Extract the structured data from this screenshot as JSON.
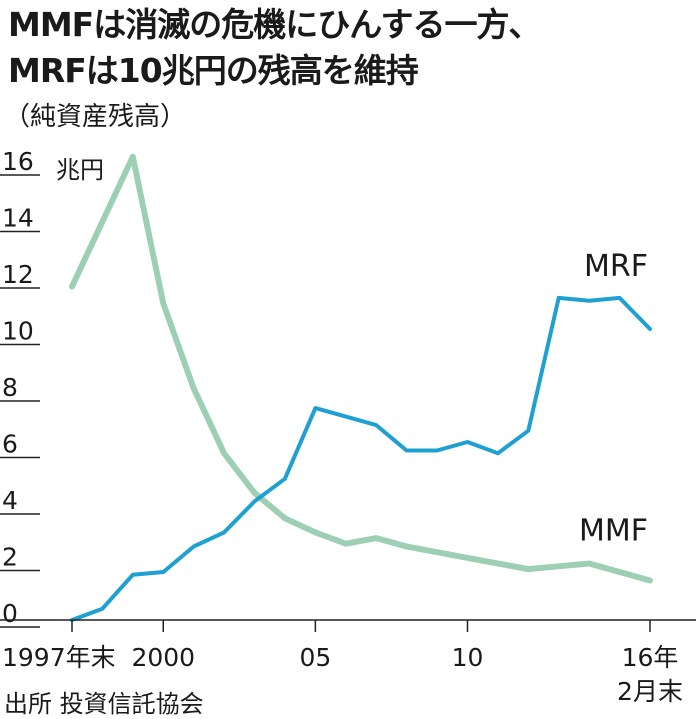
{
  "title_line1": "MMFは消滅の危機にひんする一方、",
  "title_line2": "MRFは10兆円の残高を維持",
  "subtitle": "（純資産残高）",
  "source": "出所  投資信託協会",
  "colors": {
    "mrf": "#1ea0d2",
    "mmf": "#9dcfb4",
    "axis": "#222222"
  },
  "chart_data": {
    "type": "line",
    "title": "MMFは消滅の危機にひんする一方、MRFは10兆円の残高を維持",
    "subtitle": "（純資産残高）",
    "ylabel": "兆円",
    "ylim": [
      0,
      16
    ],
    "yticks": [
      "0",
      "2",
      "4",
      "6",
      "8",
      "10",
      "12",
      "14",
      "16"
    ],
    "xlim": [
      1997,
      2016
    ],
    "xticks": [
      {
        "x": 1997,
        "label": "1997年末"
      },
      {
        "x": 2000,
        "label": "2000"
      },
      {
        "x": 2005,
        "label": "05"
      },
      {
        "x": 2010,
        "label": "10"
      },
      {
        "x": 2016,
        "label": "16年",
        "label2": "2月末"
      }
    ],
    "x": [
      1997,
      1998,
      1999,
      2000,
      2001,
      2002,
      2003,
      2004,
      2005,
      2006,
      2007,
      2008,
      2009,
      2010,
      2011,
      2012,
      2013,
      2014,
      2015,
      2016
    ],
    "series": [
      {
        "name": "MRF",
        "values": [
          0.0,
          0.4,
          1.6,
          1.7,
          2.6,
          3.1,
          4.2,
          5.0,
          7.5,
          7.2,
          6.9,
          6.0,
          6.0,
          6.3,
          5.9,
          6.7,
          11.4,
          11.3,
          11.4,
          10.3
        ]
      },
      {
        "name": "MMF",
        "values": [
          11.8,
          14.1,
          16.4,
          11.2,
          8.2,
          5.9,
          4.5,
          3.6,
          3.1,
          2.7,
          2.9,
          2.6,
          2.4,
          2.2,
          2.0,
          1.8,
          1.9,
          2.0,
          1.7,
          1.4
        ]
      }
    ],
    "annotations": [
      {
        "text": "MRF",
        "series": "MRF"
      },
      {
        "text": "MMF",
        "series": "MMF"
      }
    ]
  }
}
